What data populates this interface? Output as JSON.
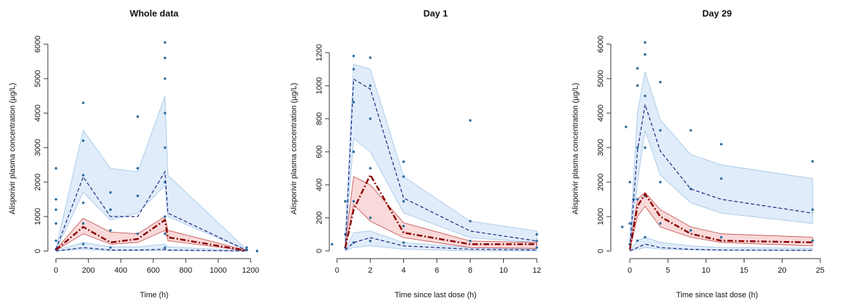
{
  "chart_data": [
    {
      "type": "vpc",
      "title": "Whole data",
      "x_label": "Time (h)",
      "y_label": "Alisporivir plasma concentration (µg/L)",
      "xlim": [
        -50,
        1260
      ],
      "xticks": [
        0,
        200,
        400,
        600,
        800,
        1000,
        1200
      ],
      "ylim": [
        -220,
        6160
      ],
      "yticks": [
        0,
        1000,
        2000,
        3000,
        4000,
        5000,
        6000
      ],
      "x": [
        0,
        168,
        336,
        504,
        672,
        690,
        1176
      ],
      "bands": [
        {
          "color": "#d6e6f7",
          "stroke": "#9cc3e6",
          "lower": [
            30,
            1700,
            900,
            1100,
            1900,
            1000,
            20
          ],
          "upper": [
            80,
            3500,
            2400,
            2300,
            4500,
            2200,
            40
          ]
        },
        {
          "color": "#d6e6f7",
          "stroke": "#9cc3e6",
          "lower": [
            0,
            50,
            10,
            10,
            20,
            10,
            0
          ],
          "upper": [
            20,
            250,
            120,
            120,
            200,
            120,
            10
          ]
        },
        {
          "color": "#f7cccc",
          "stroke": "#c04848",
          "lower": [
            20,
            500,
            200,
            250,
            600,
            300,
            5
          ],
          "upper": [
            50,
            950,
            550,
            500,
            1000,
            600,
            20
          ]
        }
      ],
      "lines": [
        {
          "color": "#1a237e",
          "style": "dashed",
          "values": [
            50,
            2150,
            1000,
            1000,
            2300,
            1100,
            20
          ]
        },
        {
          "color": "#1a237e",
          "style": "dashed",
          "values": [
            0,
            100,
            30,
            30,
            50,
            30,
            0
          ]
        },
        {
          "color": "#8b0000",
          "style": "dotdash",
          "values": [
            30,
            700,
            250,
            350,
            900,
            400,
            10
          ]
        }
      ],
      "observed": {
        "color": "#2e6f9e",
        "x": [
          0,
          0,
          0,
          0,
          0,
          0,
          168,
          168,
          168,
          168,
          168,
          168,
          336,
          336,
          336,
          336,
          504,
          504,
          504,
          504,
          672,
          672,
          672,
          672,
          672,
          672,
          672,
          672,
          672,
          1176,
          1176,
          1240
        ],
        "y": [
          2400,
          1500,
          1200,
          800,
          300,
          50,
          4300,
          3200,
          2200,
          1400,
          800,
          200,
          1700,
          1200,
          600,
          100,
          3900,
          2400,
          1600,
          500,
          6050,
          5600,
          5000,
          4000,
          3000,
          2000,
          1000,
          500,
          100,
          100,
          30,
          0
        ]
      }
    },
    {
      "type": "vpc",
      "title": "Day 1",
      "x_label": "Time since last dose (h)",
      "y_label": "Alisporivir plasma concentration (µg/L)",
      "xlim": [
        -0.46,
        12.3
      ],
      "xticks": [
        0,
        2,
        4,
        6,
        8,
        10,
        12
      ],
      "ylim": [
        -47,
        1285
      ],
      "yticks": [
        0,
        200,
        400,
        600,
        800,
        1000,
        1200
      ],
      "x": [
        0.5,
        1,
        2,
        4,
        8,
        12
      ],
      "bands": [
        {
          "color": "#d6e6f7",
          "stroke": "#9cc3e6",
          "lower": [
            30,
            680,
            600,
            230,
            80,
            50
          ],
          "upper": [
            80,
            1130,
            1100,
            450,
            180,
            120
          ]
        },
        {
          "color": "#d6e6f7",
          "stroke": "#9cc3e6",
          "lower": [
            0,
            20,
            30,
            10,
            0,
            0
          ],
          "upper": [
            10,
            110,
            120,
            50,
            20,
            10
          ]
        },
        {
          "color": "#f7cccc",
          "stroke": "#c04848",
          "lower": [
            10,
            280,
            180,
            80,
            20,
            15
          ],
          "upper": [
            40,
            450,
            400,
            170,
            60,
            50
          ]
        }
      ],
      "lines": [
        {
          "color": "#1a237e",
          "style": "dashed",
          "values": [
            20,
            1040,
            980,
            320,
            120,
            60
          ]
        },
        {
          "color": "#1a237e",
          "style": "dashed",
          "values": [
            5,
            50,
            80,
            30,
            10,
            5
          ]
        },
        {
          "color": "#8b0000",
          "style": "dotdash",
          "values": [
            20,
            250,
            460,
            110,
            40,
            40
          ]
        }
      ],
      "observed": {
        "color": "#2e6f9e",
        "x": [
          -0.3,
          0.5,
          0.5,
          0.5,
          1,
          1,
          1,
          1,
          1,
          1,
          2,
          2,
          2,
          2,
          2,
          2,
          4,
          4,
          4,
          4,
          4,
          8,
          8,
          8,
          12,
          12,
          12
        ],
        "y": [
          40,
          300,
          100,
          20,
          1180,
          1100,
          900,
          600,
          300,
          50,
          1170,
          1000,
          800,
          500,
          200,
          60,
          540,
          450,
          300,
          150,
          50,
          790,
          180,
          60,
          100,
          60,
          20
        ]
      }
    },
    {
      "type": "vpc",
      "title": "Day 29",
      "x_label": "Time since last dose (h)",
      "y_label": "Alisporivir plasma concentration (µg/L)",
      "xlim": [
        -2.5,
        25.4
      ],
      "xticks": [
        0,
        5,
        10,
        15,
        20,
        25
      ],
      "ylim": [
        -220,
        6160
      ],
      "yticks": [
        0,
        1000,
        2000,
        3000,
        4000,
        5000,
        6000
      ],
      "x": [
        0,
        1,
        2,
        4,
        8,
        12,
        24
      ],
      "bands": [
        {
          "color": "#d6e6f7",
          "stroke": "#9cc3e6",
          "lower": [
            50,
            2000,
            3500,
            2200,
            1400,
            1100,
            800
          ],
          "upper": [
            300,
            4000,
            5200,
            3800,
            2800,
            2500,
            2100
          ]
        },
        {
          "color": "#d6e6f7",
          "stroke": "#9cc3e6",
          "lower": [
            0,
            50,
            100,
            60,
            30,
            20,
            10
          ],
          "upper": [
            30,
            300,
            400,
            250,
            150,
            100,
            80
          ]
        },
        {
          "color": "#f7cccc",
          "stroke": "#c04848",
          "lower": [
            20,
            1000,
            1300,
            700,
            400,
            250,
            150
          ],
          "upper": [
            100,
            1500,
            1700,
            1200,
            700,
            500,
            400
          ]
        }
      ],
      "lines": [
        {
          "color": "#1a237e",
          "style": "dashed",
          "values": [
            100,
            2900,
            4250,
            2900,
            1800,
            1500,
            1100
          ]
        },
        {
          "color": "#1a237e",
          "style": "dashed",
          "values": [
            10,
            100,
            200,
            100,
            50,
            30,
            20
          ]
        },
        {
          "color": "#8b0000",
          "style": "dotdash",
          "values": [
            50,
            1300,
            1650,
            1000,
            500,
            300,
            250
          ]
        }
      ],
      "observed": {
        "color": "#2e6f9e",
        "x": [
          -1,
          -0.5,
          0,
          0,
          0,
          0.5,
          1,
          1,
          1,
          1,
          1,
          2,
          2,
          2,
          2,
          2,
          2,
          4,
          4,
          4,
          4,
          8,
          8,
          8,
          12,
          12,
          12,
          24,
          24,
          24
        ],
        "y": [
          700,
          3600,
          2000,
          800,
          200,
          1500,
          5300,
          4800,
          3000,
          1500,
          300,
          6050,
          5700,
          4500,
          3000,
          1600,
          400,
          4900,
          3500,
          2000,
          800,
          3500,
          1800,
          600,
          3100,
          2100,
          400,
          2600,
          1200,
          300
        ]
      }
    }
  ]
}
